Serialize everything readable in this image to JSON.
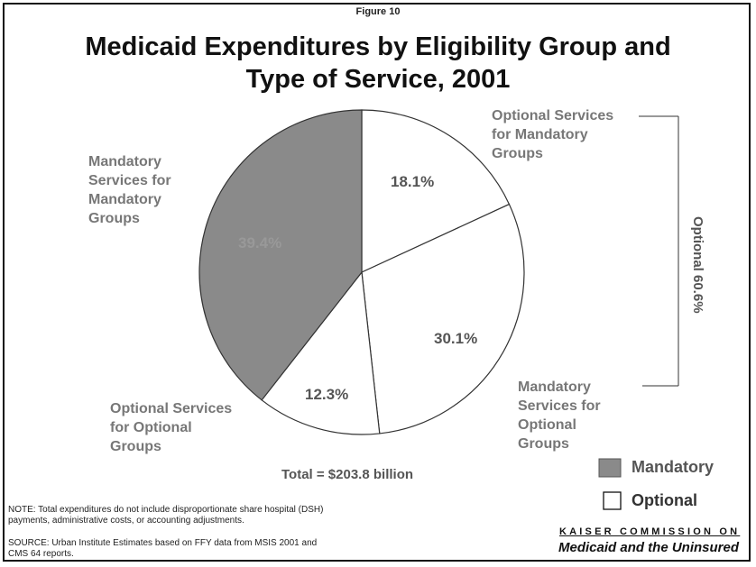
{
  "figure_label": "Figure 10",
  "title_line1": "Medicaid Expenditures by Eligibility Group and",
  "title_line2": "Type of Service, 2001",
  "chart_data": {
    "type": "pie",
    "title": "Medicaid Expenditures by Eligibility Group and Type of Service, 2001",
    "slices": [
      {
        "label": "Optional Services for Mandatory Groups",
        "value": 18.1,
        "value_label": "18.1%",
        "category": "Optional",
        "color": "#ffffff"
      },
      {
        "label": "Mandatory Services for Optional Groups",
        "value": 30.1,
        "value_label": "30.1%",
        "category": "Optional",
        "color": "#ffffff"
      },
      {
        "label": "Optional Services for Optional Groups",
        "value": 12.3,
        "value_label": "12.3%",
        "category": "Optional",
        "color": "#ffffff"
      },
      {
        "label": "Mandatory Services for Mandatory Groups",
        "value": 39.4,
        "value_label": "39.4%",
        "category": "Mandatory",
        "color": "#8a8a8a"
      }
    ],
    "bracket_label": "Optional 60.6%",
    "total_label": "Total = $203.8 billion",
    "legend": [
      {
        "label": "Mandatory",
        "color": "#8a8a8a"
      },
      {
        "label": "Optional",
        "color": "#ffffff"
      }
    ]
  },
  "labels": {
    "optional_for_mandatory": [
      "Optional Services",
      "for Mandatory",
      "Groups"
    ],
    "mandatory_for_mandatory": [
      "Mandatory",
      "Services for",
      "Mandatory",
      "Groups"
    ],
    "mandatory_for_optional": [
      "Mandatory",
      "Services for",
      "Optional",
      "Groups"
    ],
    "optional_for_optional": [
      "Optional Services",
      "for Optional",
      "Groups"
    ]
  },
  "note": [
    "NOTE: Total expenditures do not include disproportionate share hospital (DSH)",
    "payments, administrative costs, or accounting adjustments."
  ],
  "source": [
    "SOURCE: Urban Institute Estimates based on FFY data from MSIS 2001 and",
    "CMS 64 reports."
  ],
  "branding": {
    "line1": "KAISER COMMISSION ON",
    "line2": "Medicaid and the Uninsured"
  }
}
